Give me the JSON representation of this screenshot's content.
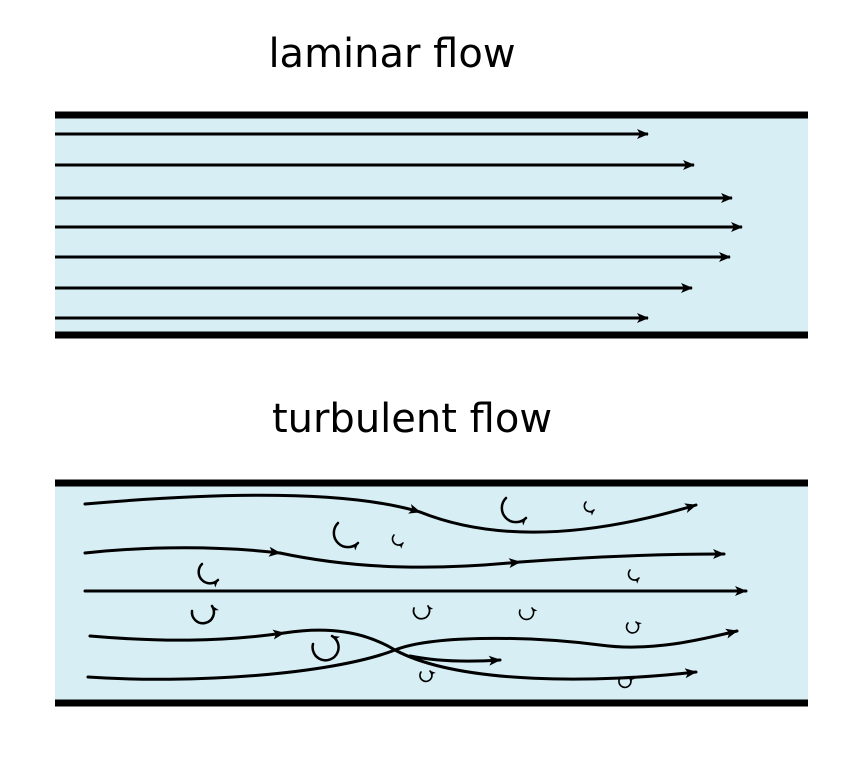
{
  "titles": {
    "laminar": "laminar flow",
    "turbulent": "turbulent flow"
  },
  "colors": {
    "fluid": "#d6eef4",
    "wall": "#000000",
    "streamline": "#000000"
  }
}
